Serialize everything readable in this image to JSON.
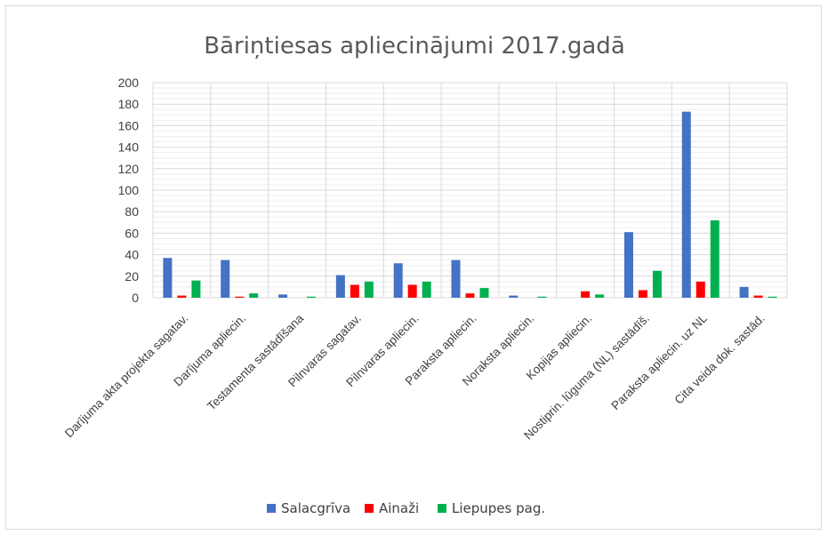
{
  "chart_data": {
    "type": "bar",
    "title": "Bāriņtiesas apliecinājumi 2017.gadā",
    "xlabel": "",
    "ylabel": "",
    "ylim": [
      0,
      200
    ],
    "yticks": [
      0,
      20,
      40,
      60,
      80,
      100,
      120,
      140,
      160,
      180,
      200
    ],
    "grid": true,
    "legend_position": "bottom",
    "categories": [
      "Darījuma akta projekta sagatav.",
      "Darījuma apliecin.",
      "Testamenta sastādīšana",
      "Pilnvaras sagatav.",
      "Pilnvaras apliecin.",
      "Paraksta apliecin.",
      "Noraksta apliecin.",
      "Kopijas apliecin.",
      "Nostiprin. lūguma (NL) sastādīš.",
      "Paraksta apliecin. uz NL",
      "Cita veida dok. sastād."
    ],
    "series": [
      {
        "name": "Salacgrīva",
        "color": "#4472C4",
        "values": [
          37,
          35,
          3,
          21,
          32,
          35,
          2,
          0,
          61,
          173,
          10
        ]
      },
      {
        "name": "Ainaži",
        "color": "#FF0000",
        "values": [
          2,
          1,
          0,
          12,
          12,
          4,
          0,
          6,
          7,
          15,
          2
        ]
      },
      {
        "name": "Liepupes pag.",
        "color": "#00B050",
        "values": [
          16,
          4,
          1,
          15,
          15,
          9,
          1,
          3,
          25,
          72,
          1
        ]
      }
    ]
  }
}
